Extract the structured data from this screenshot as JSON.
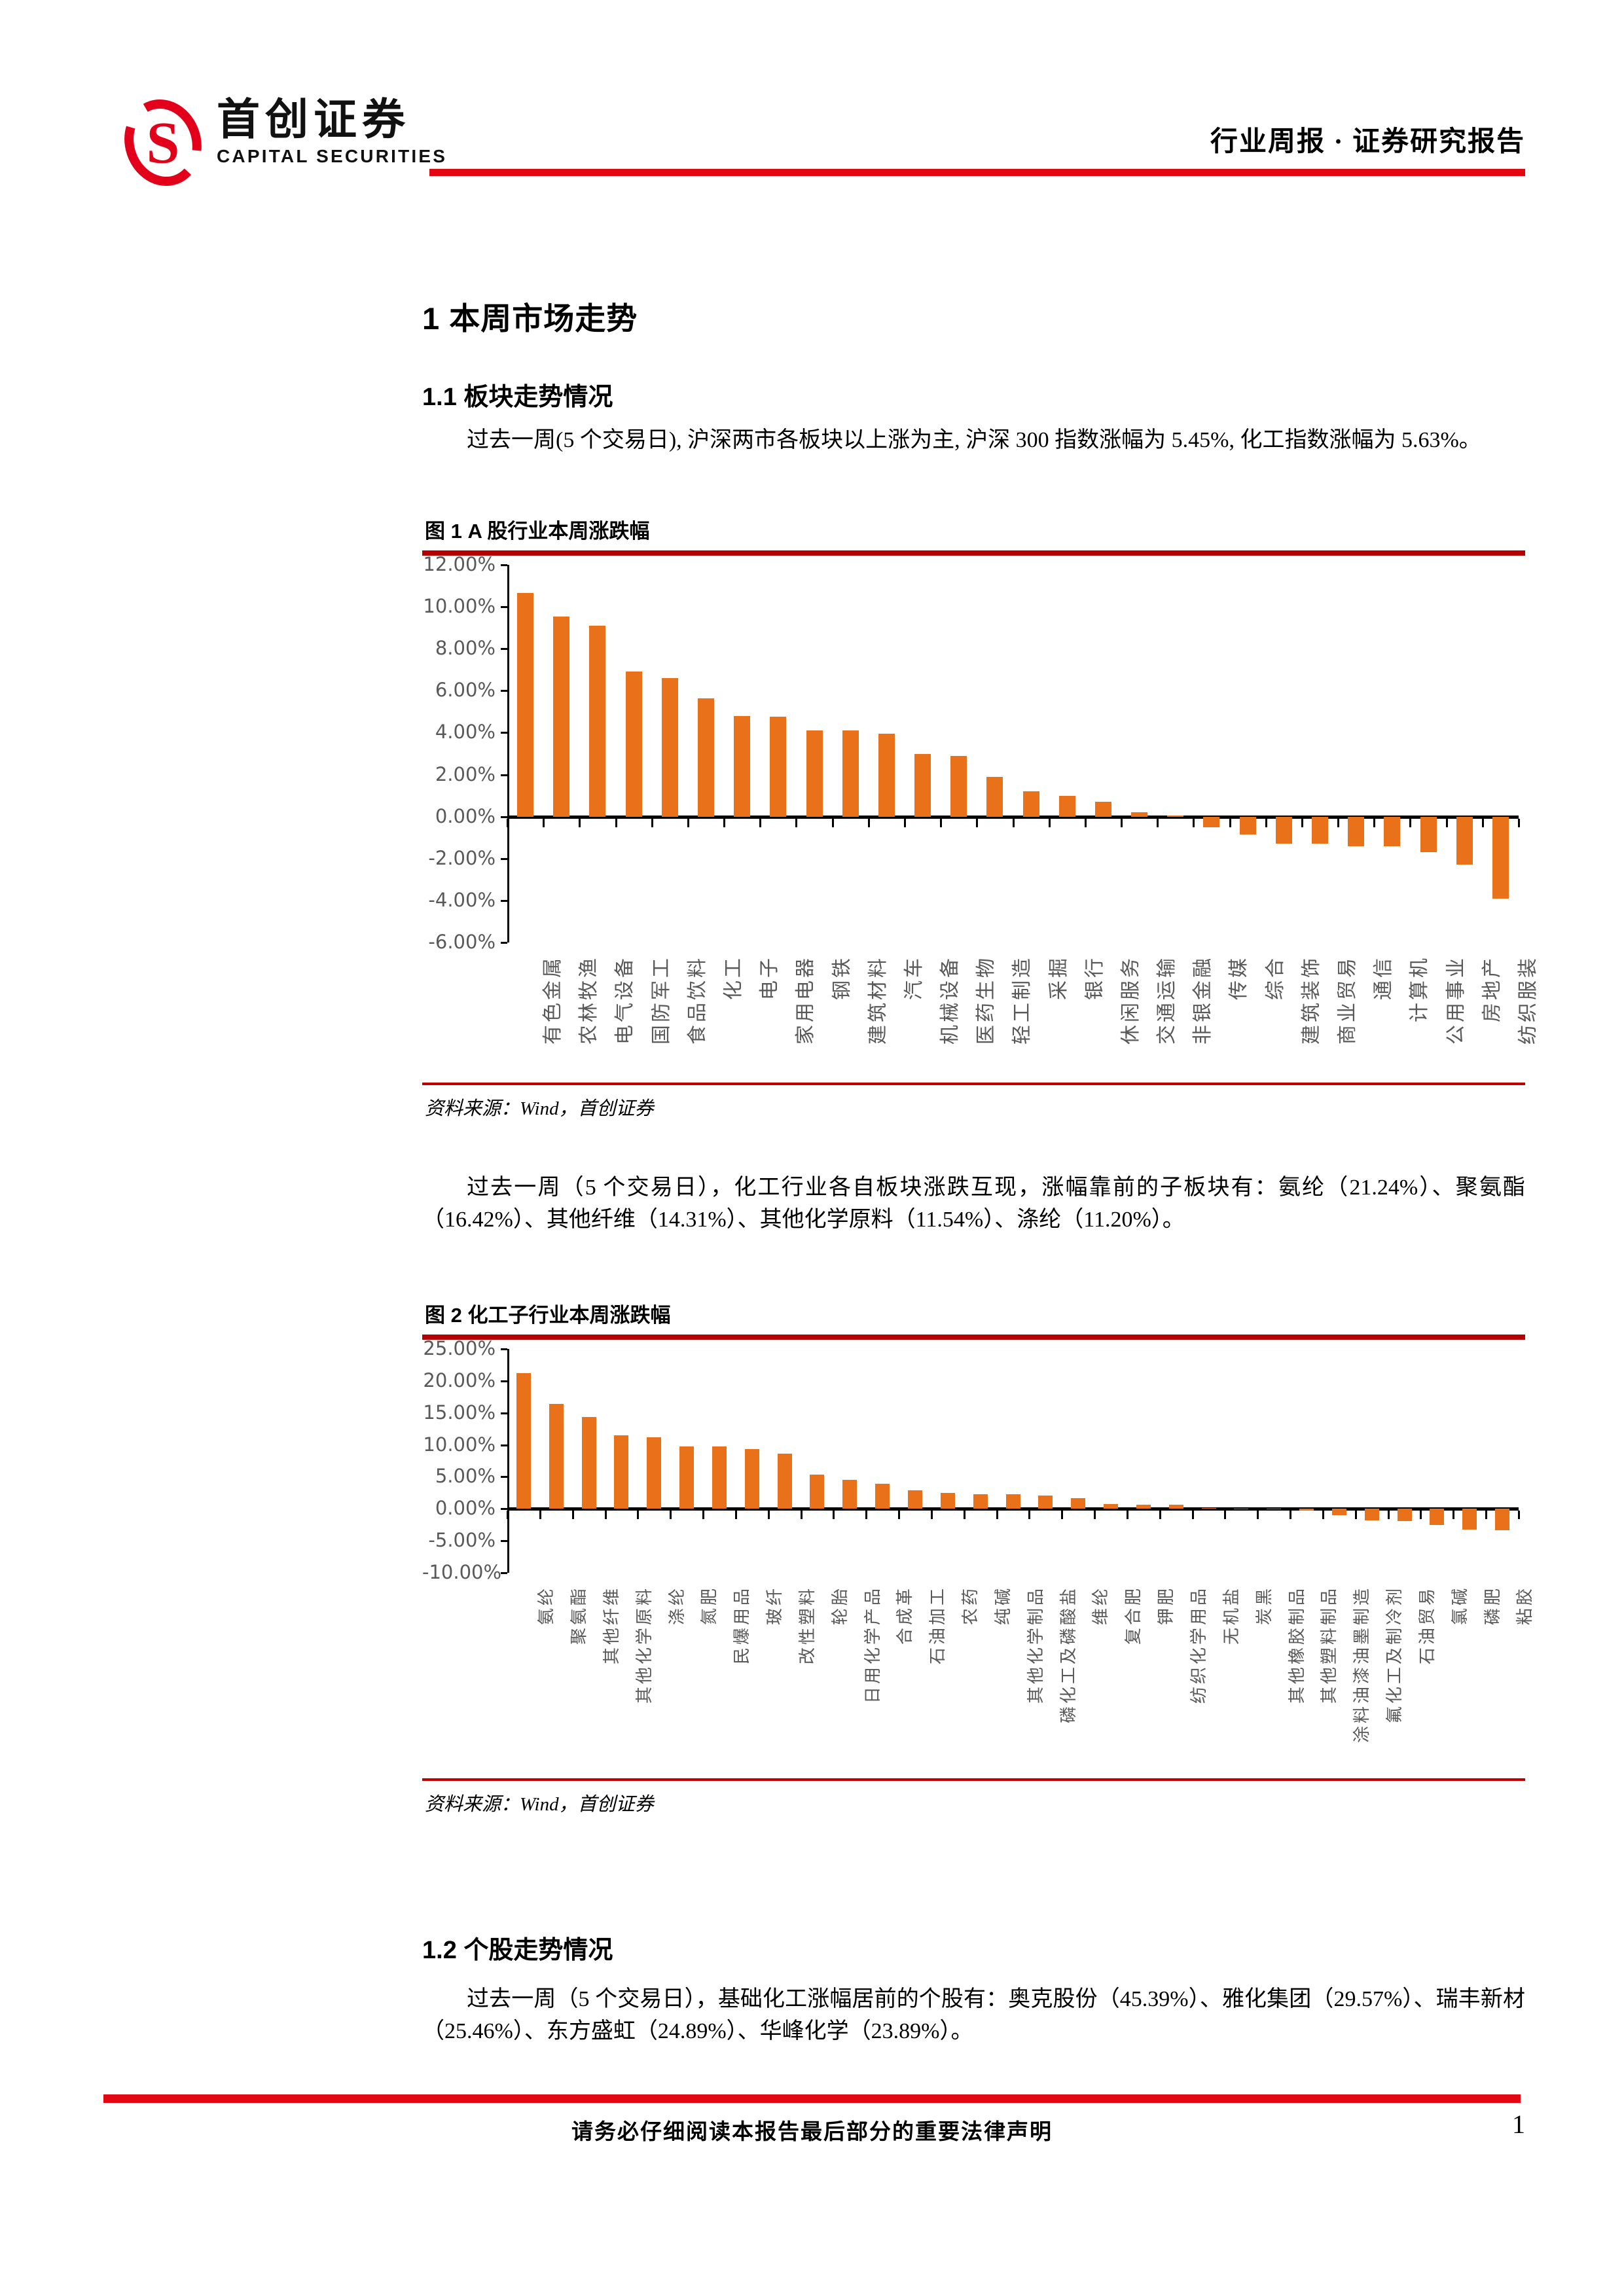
{
  "header": {
    "logo_letter": "S",
    "brand_cn": "首创证券",
    "brand_en": "CAPITAL SECURITIES",
    "doc_type": "行业周报 · 证券研究报告"
  },
  "section1": {
    "heading": "1 本周市场走势",
    "sub1_heading": "1.1 板块走势情况",
    "paragraph1": "过去一周(5 个交易日), 沪深两市各板块以上涨为主, 沪深 300 指数涨幅为 5.45%, 化工指数涨幅为 5.63%。",
    "paragraph2": "过去一周（5 个交易日），化工行业各自板块涨跌互现，涨幅靠前的子板块有：氨纶（21.24%）、聚氨酯（16.42%）、其他纤维（14.31%）、其他化学原料（11.54%）、涤纶（11.20%）。"
  },
  "section2": {
    "heading": "1.2 个股走势情况",
    "paragraph": "过去一周（5 个交易日），基础化工涨幅居前的个股有：奥克股份（45.39%）、雅化集团（29.57%）、瑞丰新材（25.46%）、东方盛虹（24.89%）、华峰化学（23.89%）。"
  },
  "figure1": {
    "title": "图  1 A 股行业本周涨跌幅",
    "source": "资料来源：Wind，首创证券"
  },
  "figure2": {
    "title": "图  2 化工子行业本周涨跌幅",
    "source": "资料来源：Wind，首创证券"
  },
  "footer": {
    "disclaimer": "请务必仔细阅读本报告最后部分的重要法律声明",
    "page_number": "1"
  },
  "colors": {
    "accent_red": "#E30613",
    "rule_dark_red": "#B40000",
    "thin_rule_red": "#C00000",
    "bar_orange": "#E97119",
    "axis_label_gray": "#595959"
  },
  "chart_data": [
    {
      "type": "bar",
      "title": "A股行业本周涨跌幅",
      "categories": [
        "有色金属",
        "农林牧渔",
        "电气设备",
        "国防军工",
        "食品饮料",
        "化工",
        "电子",
        "家用电器",
        "钢铁",
        "建筑材料",
        "汽车",
        "机械设备",
        "医药生物",
        "轻工制造",
        "采掘",
        "银行",
        "休闲服务",
        "交通运输",
        "非银金融",
        "传媒",
        "综合",
        "建筑装饰",
        "商业贸易",
        "通信",
        "计算机",
        "公用事业",
        "房地产",
        "纺织服装"
      ],
      "values": [
        10.65,
        9.55,
        9.1,
        6.9,
        6.6,
        5.63,
        4.8,
        4.75,
        4.1,
        4.1,
        3.95,
        3.0,
        2.9,
        1.9,
        1.2,
        1.0,
        0.7,
        0.2,
        0.05,
        -0.5,
        -0.85,
        -1.3,
        -1.3,
        -1.4,
        -1.4,
        -1.7,
        -2.3,
        -3.9
      ],
      "xlabel": "",
      "ylabel": "",
      "ylim": [
        -6,
        12
      ],
      "ytick_step": 2,
      "ytick_format": "0.00%",
      "grid": false,
      "legend": null,
      "bar_color": "#E97119"
    },
    {
      "type": "bar",
      "title": "化工子行业本周涨跌幅",
      "categories": [
        "氨纶",
        "聚氨酯",
        "其他纤维",
        "其他化学原料",
        "涤纶",
        "氮肥",
        "民爆用品",
        "玻纤",
        "改性塑料",
        "轮胎",
        "日用化学产品",
        "合成革",
        "石油加工",
        "农药",
        "纯碱",
        "其他化学制品",
        "磷化工及磷酸盐",
        "维纶",
        "复合肥",
        "钾肥",
        "纺织化学用品",
        "无机盐",
        "炭黑",
        "其他橡胶制品",
        "其他塑料制品",
        "涂料油漆油墨制造",
        "氟化工及制冷剂",
        "石油贸易",
        "氯碱",
        "磷肥",
        "粘胶"
      ],
      "values": [
        21.24,
        16.42,
        14.31,
        11.54,
        11.2,
        9.8,
        9.75,
        9.3,
        8.6,
        5.4,
        4.5,
        3.9,
        2.9,
        2.5,
        2.3,
        2.3,
        2.1,
        1.7,
        0.7,
        0.6,
        0.65,
        0.15,
        0.05,
        -0.1,
        -0.25,
        -1.0,
        -1.85,
        -1.9,
        -2.5,
        -3.2,
        -3.3
      ],
      "xlabel": "",
      "ylabel": "",
      "ylim": [
        -10,
        25
      ],
      "ytick_step": 5,
      "ytick_format": "0.00%",
      "grid": false,
      "legend": null,
      "bar_color": "#E97119"
    }
  ]
}
